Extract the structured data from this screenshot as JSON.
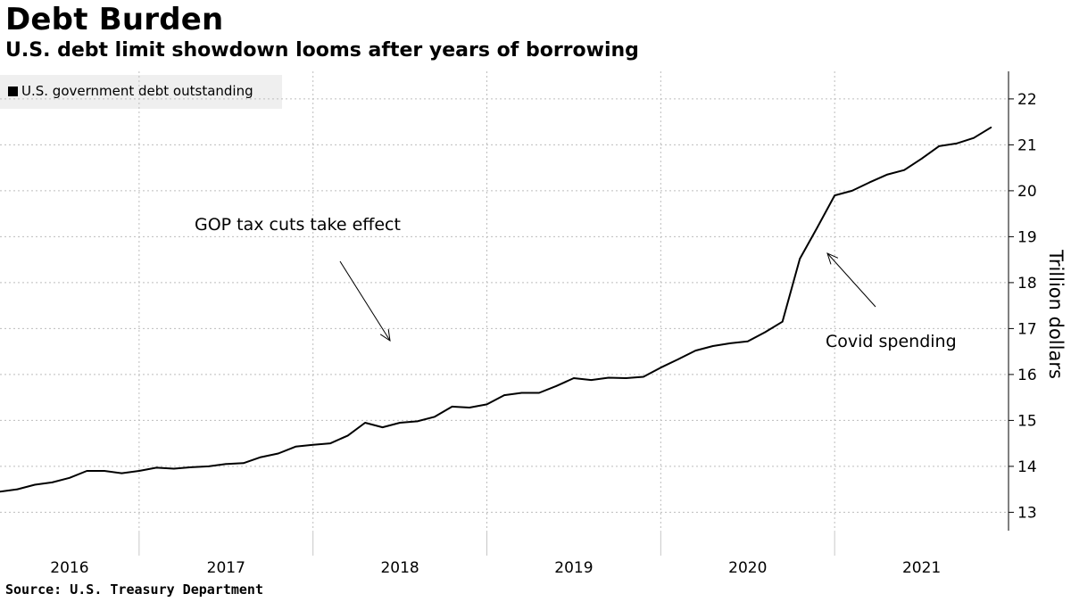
{
  "header": {
    "title": "Debt Burden",
    "subtitle": "U.S. debt limit showdown looms after years of borrowing"
  },
  "legend": {
    "label": "U.S. government debt outstanding",
    "color": "#000000"
  },
  "source": "Source: U.S. Treasury Department",
  "chart_data": {
    "type": "line",
    "title": "Debt Burden",
    "subtitle": "U.S. debt limit showdown looms after years of borrowing",
    "ylabel": "Trillion dollars",
    "xlabel": "",
    "ylim": [
      12.6,
      22.6
    ],
    "xlim": [
      2015.7,
      2021.5
    ],
    "yticks": [
      13,
      14,
      15,
      16,
      17,
      18,
      19,
      20,
      21,
      22
    ],
    "xtick_labels": [
      "2016",
      "2017",
      "2018",
      "2019",
      "2020",
      "2021"
    ],
    "grid": "dotted",
    "legend_position": "top-left",
    "series": [
      {
        "name": "U.S. government debt outstanding",
        "color": "#000000",
        "x": [
          2015.7,
          2015.8,
          2015.9,
          2016.0,
          2016.1,
          2016.2,
          2016.3,
          2016.4,
          2016.5,
          2016.6,
          2016.7,
          2016.8,
          2016.9,
          2017.0,
          2017.1,
          2017.2,
          2017.3,
          2017.4,
          2017.5,
          2017.6,
          2017.7,
          2017.8,
          2017.9,
          2018.0,
          2018.1,
          2018.2,
          2018.3,
          2018.4,
          2018.5,
          2018.6,
          2018.7,
          2018.8,
          2018.9,
          2019.0,
          2019.1,
          2019.2,
          2019.3,
          2019.4,
          2019.5,
          2019.6,
          2019.7,
          2019.8,
          2019.9,
          2020.0,
          2020.1,
          2020.2,
          2020.3,
          2020.4,
          2020.5,
          2020.6,
          2020.7,
          2020.8,
          2020.9,
          2021.0,
          2021.1,
          2021.2,
          2021.3,
          2021.4
        ],
        "values": [
          13.45,
          13.5,
          13.6,
          13.65,
          13.75,
          13.9,
          13.9,
          13.85,
          13.9,
          13.97,
          13.95,
          13.98,
          14.0,
          14.05,
          14.07,
          14.2,
          14.28,
          14.43,
          14.47,
          14.5,
          14.67,
          14.95,
          14.85,
          14.95,
          14.98,
          15.08,
          15.3,
          15.28,
          15.35,
          15.55,
          15.6,
          15.6,
          15.75,
          15.92,
          15.88,
          15.93,
          15.92,
          15.95,
          16.15,
          16.33,
          16.52,
          16.62,
          16.68,
          16.72,
          16.92,
          17.15,
          18.52,
          19.2,
          19.9,
          20.0,
          20.18,
          20.35,
          20.45,
          20.7,
          20.97,
          21.03,
          21.15,
          21.38
        ]
      }
    ],
    "annotations": [
      {
        "text": "GOP tax cuts take effect"
      },
      {
        "text": "Covid spending"
      }
    ]
  }
}
